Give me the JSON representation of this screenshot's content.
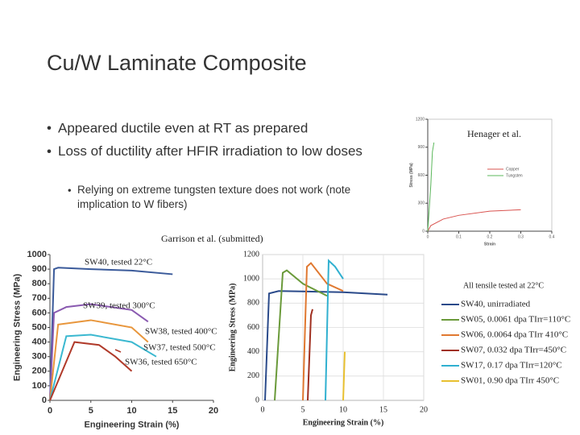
{
  "title": "Cu/W Laminate Composite",
  "bullets": [
    "Appeared ductile even at RT as prepared",
    "Loss of ductility after HFIR irradiation to low doses"
  ],
  "sub_bullets": [
    "Relying on extreme tungsten texture does not work (note implication to W fibers)"
  ],
  "credits": [
    "Henager et al.",
    "Garrison et al. (submitted)"
  ],
  "chart_data": [
    {
      "type": "line",
      "xlabel": "Strain",
      "ylabel": "Stress (MPa)",
      "xlim": [
        0,
        0.4
      ],
      "ylim": [
        0,
        1200
      ],
      "xticks": [
        0,
        0.1,
        0.2,
        0.3,
        0.4
      ],
      "yticks": [
        0,
        300,
        600,
        900,
        1200
      ],
      "legend": "right",
      "series": [
        {
          "name": "Copper",
          "color": "#d9534f",
          "x": [
            0,
            0.01,
            0.05,
            0.1,
            0.2,
            0.3
          ],
          "y": [
            0,
            60,
            130,
            170,
            215,
            230
          ]
        },
        {
          "name": "Tungsten",
          "color": "#5cb85c",
          "x": [
            0,
            0.01,
            0.015,
            0.02
          ],
          "y": [
            0,
            500,
            850,
            950
          ]
        }
      ]
    },
    {
      "type": "line",
      "xlabel": "Engineering Strain (%)",
      "ylabel": "Engineering Stress (MPa)",
      "xlim": [
        0,
        20
      ],
      "ylim": [
        0,
        1000
      ],
      "xticks": [
        0,
        5,
        10,
        15,
        20
      ],
      "yticks": [
        0,
        100,
        200,
        300,
        400,
        500,
        600,
        700,
        800,
        900,
        1000
      ],
      "series": [
        {
          "name": "SW40, tested 22°C",
          "color": "#3a5a9a",
          "x": [
            0,
            0.5,
            1,
            5,
            10,
            15
          ],
          "y": [
            0,
            900,
            910,
            900,
            890,
            865
          ]
        },
        {
          "name": "SW39, tested 300°C",
          "color": "#8a5ab0",
          "x": [
            0,
            0.5,
            2,
            5,
            10,
            12
          ],
          "y": [
            0,
            600,
            640,
            660,
            620,
            540
          ]
        },
        {
          "name": "SW38, tested 400°C",
          "color": "#e8963c",
          "x": [
            0,
            1,
            5,
            10,
            12
          ],
          "y": [
            0,
            520,
            550,
            500,
            400
          ]
        },
        {
          "name": "SW37, tested 500°C",
          "color": "#3bb8d0",
          "x": [
            0,
            2,
            5,
            10,
            13
          ],
          "y": [
            0,
            440,
            450,
            400,
            300
          ]
        },
        {
          "name": "SW36, tested 650°C",
          "color": "#b03a2a",
          "x": [
            0,
            3,
            6,
            8,
            10
          ],
          "y": [
            0,
            400,
            380,
            300,
            200
          ]
        }
      ]
    },
    {
      "type": "line",
      "xlabel": "Engineering Strain (%)",
      "ylabel": "Engineering Stress (MPa)",
      "xlim": [
        0,
        20
      ],
      "ylim": [
        0,
        1200
      ],
      "xticks": [
        0,
        5,
        10,
        15,
        20
      ],
      "yticks": [
        0,
        200,
        400,
        600,
        800,
        1000,
        1200
      ],
      "grid": true,
      "legend_title": "All tensile tested at 22°C",
      "series": [
        {
          "name": "SW40, unirradiated",
          "color": "#2a4a8a",
          "x": [
            0.3,
            0.8,
            2,
            10,
            15.5
          ],
          "y": [
            0,
            880,
            900,
            890,
            870
          ]
        },
        {
          "name": "SW05, 0.0061 dpa TIrr=110°C",
          "color": "#6a9a3a",
          "x": [
            1.5,
            2.5,
            3,
            5,
            8
          ],
          "y": [
            0,
            1050,
            1070,
            960,
            860
          ]
        },
        {
          "name": "SW06, 0.0064 dpa TIrr 410°C",
          "color": "#e07830",
          "x": [
            5,
            5.5,
            6,
            8,
            10
          ],
          "y": [
            0,
            1100,
            1130,
            960,
            900
          ]
        },
        {
          "name": "SW07, 0.032 dpa TIrr=450°C",
          "color": "#a03020",
          "x": [
            5.6,
            6,
            6.2
          ],
          "y": [
            0,
            700,
            750
          ]
        },
        {
          "name": "SW17, 0.17 dpa TIrr=120°C",
          "color": "#30b0d0",
          "x": [
            7.8,
            8.2,
            9,
            10
          ],
          "y": [
            0,
            1150,
            1100,
            1000
          ]
        },
        {
          "name": "SW01, 0.90 dpa TIrr 450°C",
          "color": "#e8c030",
          "x": [
            10,
            10.2
          ],
          "y": [
            0,
            400
          ]
        }
      ]
    }
  ]
}
